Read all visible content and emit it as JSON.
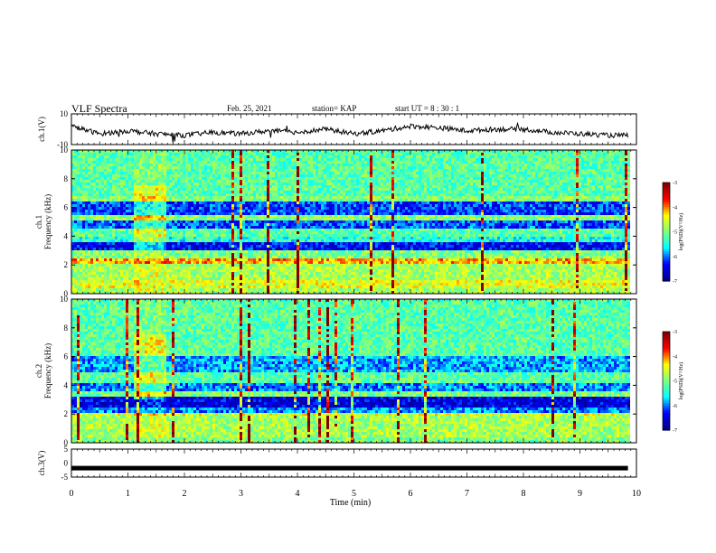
{
  "header": {
    "title": "VLF Spectra",
    "date": "Feb. 25, 2021",
    "station": "station= KAP",
    "start": "start  UT =   8  : 30 : 1"
  },
  "chart_data": [
    {
      "type": "line",
      "panel": "ch1-waveform",
      "ylabel": "ch.1(V)",
      "ylim": [
        -10,
        10
      ],
      "yticks": [
        -10,
        10
      ],
      "x_range": [
        0,
        9.85
      ],
      "x": [
        0,
        0.5,
        1.0,
        1.5,
        2.0,
        2.5,
        3.0,
        3.5,
        4.0,
        4.5,
        5.0,
        5.5,
        6.0,
        6.5,
        7.0,
        7.5,
        8.0,
        8.5,
        9.0,
        9.5,
        9.85
      ],
      "y": [
        2,
        -3,
        -1,
        -3,
        -4,
        -2,
        -3,
        -1,
        -2,
        0,
        -3,
        -1,
        2,
        1,
        -1,
        0,
        0,
        -2,
        -3,
        -4,
        -4
      ]
    },
    {
      "type": "heatmap",
      "panel": "ch1-spectrogram",
      "ylabel": "ch.1\nFrequency (kHz)",
      "ylim": [
        0,
        10
      ],
      "yticks": [
        "0",
        "2",
        "4",
        "6",
        "8",
        "10"
      ],
      "colorbar_label": "log(PSD)(V²/Hz)",
      "colorbar_ticks": [
        "-3",
        "-4",
        "-5",
        "-6",
        "-7"
      ],
      "colorbar_range": [
        -7,
        -3
      ]
    },
    {
      "type": "heatmap",
      "panel": "ch2-spectrogram",
      "ylabel": "ch.2\nFrequency (kHz)",
      "ylim": [
        0,
        10
      ],
      "yticks": [
        "0",
        "2",
        "4",
        "6",
        "8",
        "10"
      ],
      "colorbar_label": "log(PSD)(V²/Hz)",
      "colorbar_ticks": [
        "-3",
        "-4",
        "-5",
        "-6",
        "-7"
      ],
      "colorbar_range": [
        -7,
        -3
      ]
    },
    {
      "type": "line",
      "panel": "ch3-waveform",
      "ylabel": "ch.3(V)",
      "ylim": [
        -5,
        5
      ],
      "yticks": [
        "5",
        "0",
        "-5"
      ],
      "x_range": [
        0,
        9.85
      ],
      "level": -1.8
    }
  ],
  "xaxis": {
    "label": "Time (min)",
    "xlim": [
      0,
      10
    ],
    "ticks": [
      "0",
      "1",
      "2",
      "3",
      "4",
      "5",
      "6",
      "7",
      "8",
      "9",
      "10"
    ]
  },
  "colors": {
    "jet": [
      "#00008f",
      "#0000ff",
      "#00ffff",
      "#7fff7f",
      "#ffff00",
      "#ff0000",
      "#800000"
    ]
  }
}
